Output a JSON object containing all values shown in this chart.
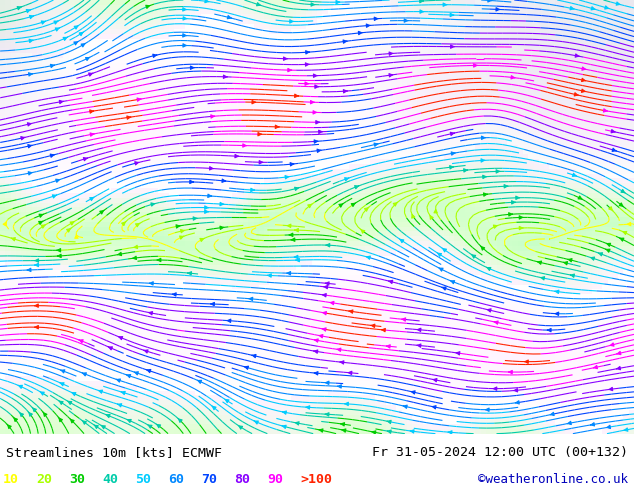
{
  "title_left": "Streamlines 10m [kts] ECMWF",
  "title_right": "Fr 31-05-2024 12:00 UTC (00+132)",
  "credit": "©weatheronline.co.uk",
  "legend_labels": [
    "10",
    "20",
    "30",
    "40",
    "50",
    "60",
    "70",
    "80",
    "90",
    ">100"
  ],
  "legend_colors": [
    "#ffff00",
    "#aaff00",
    "#00cc00",
    "#00ccaa",
    "#00ccff",
    "#0088ff",
    "#0044ff",
    "#8800ff",
    "#ff00ff",
    "#ff2200"
  ],
  "fig_width": 6.34,
  "fig_height": 4.9,
  "dpi": 100,
  "bg_land_green": [
    0.78,
    1.0,
    0.78
  ],
  "bg_ocean_gray": [
    0.88,
    0.88,
    0.92
  ],
  "bg_white": [
    1.0,
    1.0,
    1.0
  ],
  "bottom_bar_height": 0.115
}
